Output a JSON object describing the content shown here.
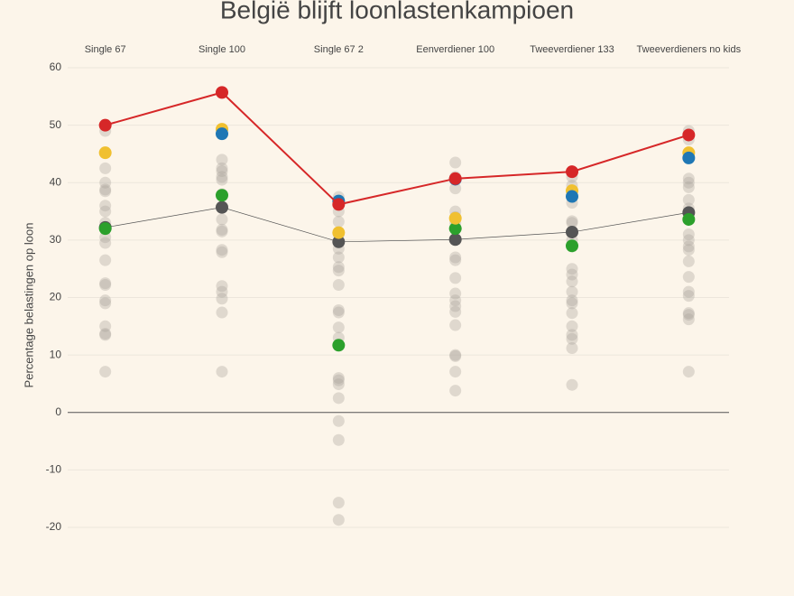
{
  "chart_data": {
    "type": "scatter",
    "title": "België blijft loonlastenkampioen",
    "y_label": "Percentage belastingen op loon",
    "categories": [
      "Single 67",
      "Single 100",
      "Single 67 2",
      "Eenverdiener 100",
      "Tweeverdiener 133",
      "Tweeverdieners no kids"
    ],
    "ylim": [
      -22,
      62
    ],
    "yticks": [
      -20,
      -10,
      0,
      10,
      20,
      30,
      40,
      50,
      60
    ],
    "grid": true,
    "zeroline": true,
    "others_color": "#a9a39c",
    "others": [
      [
        49,
        42.5,
        40,
        38.8,
        38.5,
        36,
        35,
        33,
        30.5,
        29.5,
        26.5,
        22.5,
        22.2,
        19.5,
        19,
        15,
        13.7,
        13.5,
        7.1
      ],
      [
        49,
        44,
        42.5,
        42,
        41,
        40.5,
        38,
        33.6,
        31.8,
        31.5,
        28.3,
        27.9,
        22,
        21,
        19.8,
        17.4,
        7.1
      ],
      [
        37.5,
        35,
        33.2,
        31,
        28.5,
        27,
        25.3,
        24.7,
        22.2,
        17.8,
        17.4,
        14.8,
        13,
        6,
        5.6,
        4.9,
        2.5,
        -1.5,
        -4.8,
        -15.7,
        -18.7
      ],
      [
        43.5,
        41,
        39,
        35,
        34,
        33,
        27,
        26.5,
        23.4,
        20.7,
        19.5,
        18.5,
        17.5,
        15.2,
        10,
        9.8,
        7.1,
        3.8
      ],
      [
        41,
        39.5,
        36.5,
        33.3,
        33,
        30,
        25,
        24,
        22.8,
        21,
        19.5,
        19,
        17.3,
        15,
        13.5,
        12.8,
        11.2,
        4.8
      ],
      [
        49,
        47.5,
        40.7,
        40,
        39.2,
        37,
        35.5,
        31,
        30,
        28.9,
        28.3,
        26.3,
        23.6,
        21,
        20.3,
        17.3,
        17,
        16.2,
        7.1
      ]
    ],
    "series": [
      {
        "color": "#555555",
        "line": true,
        "values": [
          32.2,
          35.7,
          29.7,
          30.1,
          31.4,
          34.8
        ]
      },
      {
        "color": "#2ca02c",
        "line": false,
        "values": [
          32.0,
          37.8,
          11.7,
          32.0,
          29.0,
          33.6
        ]
      },
      {
        "color": "#f0c030",
        "line": false,
        "values": [
          45.2,
          49.3,
          31.3,
          33.8,
          38.6,
          45.2
        ]
      },
      {
        "color": "#1f77b4",
        "line": false,
        "values": [
          null,
          48.5,
          36.8,
          40.6,
          37.6,
          44.3
        ]
      },
      {
        "color": "#d62728",
        "line": true,
        "values": [
          50,
          55.7,
          36.2,
          40.7,
          41.9,
          48.3
        ]
      }
    ]
  }
}
